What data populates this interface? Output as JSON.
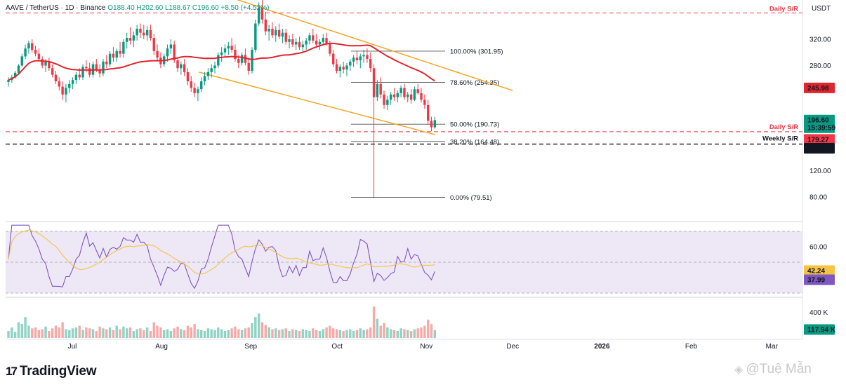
{
  "header": {
    "symbol": "AAVE / TetherUS · 1D · Binance",
    "ohlc": "O188.40 H202.60 L188.67 C196.60 +8.50 (+4.52%)"
  },
  "brand": {
    "logo_mark": "17",
    "logo_text": "TradingView"
  },
  "watermark": {
    "icon": "binance-diamond-icon",
    "text": "@Tuệ Mẫn"
  },
  "colors": {
    "up": "#089981",
    "down": "#f23645",
    "ma": "#e0252e",
    "channel": "#f5a524",
    "rsi": "#7e57c2",
    "rsi_ma": "#f6c343",
    "rsi_band": "#ede7f6"
  },
  "chart_data": [
    {
      "type": "candlestick",
      "panel": "price",
      "currency": "USDT",
      "y_ticks": [
        320,
        280,
        240,
        200,
        160,
        120,
        80
      ],
      "y_tick_labels": [
        "320.00",
        "280.00",
        "",
        "",
        "",
        "120.00",
        "80.00"
      ],
      "x_labels": [
        "Jul",
        "Aug",
        "Sep",
        "Oct",
        "Nov",
        "Dec",
        "2026",
        "Feb",
        "Mar"
      ],
      "last_price": {
        "label": "196.60",
        "countdown": "15:39:59"
      },
      "moving_average": {
        "label": "245.98"
      },
      "levels": [
        {
          "name": "Daily S/R",
          "value": 360,
          "style": "dashed",
          "color": "#f23645"
        },
        {
          "name": "Daily S/R",
          "value": 179.27,
          "label": "179.27",
          "style": "dashed",
          "color": "#f23645"
        },
        {
          "name": "Weekly S/R",
          "value": 160.51,
          "label": "160.51",
          "style": "dashed",
          "color": "#000000"
        }
      ],
      "fibonacci": [
        {
          "label": "100.00% (301.95)",
          "value": 301.95
        },
        {
          "label": "78.60% (254.35)",
          "value": 254.35
        },
        {
          "label": "50.00% (190.73)",
          "value": 190.73
        },
        {
          "label": "38.20% (164.48)",
          "value": 164.48
        },
        {
          "label": "0.00% (79.51)",
          "value": 79.51
        }
      ],
      "channel": {
        "upper": [
          {
            "date": "2025-08-24",
            "value": 385
          },
          {
            "date": "2025-12-01",
            "value": 242
          }
        ],
        "lower": [
          {
            "date": "2025-08-14",
            "value": 270
          },
          {
            "date": "2025-11-04",
            "value": 175
          }
        ]
      },
      "candles": [
        [
          255,
          262,
          248,
          258
        ],
        [
          258,
          266,
          254,
          262
        ],
        [
          262,
          272,
          260,
          269
        ],
        [
          269,
          282,
          266,
          280
        ],
        [
          280,
          298,
          278,
          294
        ],
        [
          294,
          312,
          290,
          306
        ],
        [
          306,
          318,
          298,
          314
        ],
        [
          314,
          320,
          300,
          304
        ],
        [
          304,
          310,
          294,
          298
        ],
        [
          298,
          306,
          286,
          290
        ],
        [
          290,
          294,
          276,
          280
        ],
        [
          280,
          290,
          270,
          286
        ],
        [
          286,
          292,
          272,
          276
        ],
        [
          276,
          282,
          262,
          266
        ],
        [
          266,
          272,
          252,
          256
        ],
        [
          256,
          262,
          242,
          248
        ],
        [
          248,
          256,
          228,
          236
        ],
        [
          236,
          252,
          224,
          246
        ],
        [
          246,
          258,
          238,
          252
        ],
        [
          252,
          262,
          244,
          258
        ],
        [
          258,
          270,
          252,
          266
        ],
        [
          266,
          276,
          258,
          262
        ],
        [
          262,
          282,
          258,
          278
        ],
        [
          278,
          288,
          270,
          276
        ],
        [
          276,
          284,
          262,
          266
        ],
        [
          266,
          286,
          262,
          282
        ],
        [
          282,
          290,
          270,
          274
        ],
        [
          274,
          282,
          262,
          268
        ],
        [
          268,
          290,
          264,
          286
        ],
        [
          286,
          296,
          276,
          282
        ],
        [
          282,
          302,
          278,
          298
        ],
        [
          298,
          308,
          286,
          292
        ],
        [
          292,
          306,
          286,
          302
        ],
        [
          302,
          316,
          292,
          298
        ],
        [
          298,
          320,
          292,
          316
        ],
        [
          316,
          330,
          306,
          322
        ],
        [
          322,
          338,
          312,
          318
        ],
        [
          318,
          332,
          308,
          326
        ],
        [
          326,
          342,
          318,
          336
        ],
        [
          336,
          344,
          322,
          330
        ],
        [
          330,
          342,
          320,
          326
        ],
        [
          326,
          340,
          318,
          334
        ],
        [
          334,
          342,
          318,
          322
        ],
        [
          322,
          328,
          296,
          302
        ],
        [
          302,
          312,
          286,
          292
        ],
        [
          292,
          300,
          276,
          282
        ],
        [
          282,
          298,
          278,
          294
        ],
        [
          294,
          312,
          286,
          306
        ],
        [
          306,
          320,
          298,
          312
        ],
        [
          312,
          318,
          284,
          288
        ],
        [
          288,
          292,
          270,
          276
        ],
        [
          276,
          286,
          266,
          282
        ],
        [
          282,
          290,
          264,
          270
        ],
        [
          270,
          276,
          250,
          256
        ],
        [
          256,
          264,
          240,
          246
        ],
        [
          246,
          254,
          232,
          238
        ],
        [
          238,
          248,
          226,
          244
        ],
        [
          244,
          262,
          240,
          256
        ],
        [
          256,
          270,
          250,
          264
        ],
        [
          264,
          276,
          258,
          270
        ],
        [
          270,
          282,
          262,
          276
        ],
        [
          276,
          286,
          268,
          280
        ],
        [
          280,
          300,
          276,
          296
        ],
        [
          296,
          308,
          286,
          300
        ],
        [
          300,
          312,
          292,
          306
        ],
        [
          306,
          316,
          296,
          310
        ],
        [
          310,
          322,
          300,
          304
        ],
        [
          304,
          312,
          286,
          290
        ],
        [
          290,
          296,
          276,
          284
        ],
        [
          284,
          300,
          280,
          296
        ],
        [
          296,
          306,
          280,
          284
        ],
        [
          284,
          292,
          266,
          272
        ],
        [
          272,
          308,
          268,
          304
        ],
        [
          304,
          350,
          300,
          344
        ],
        [
          344,
          376,
          340,
          368
        ],
        [
          368,
          380,
          344,
          350
        ],
        [
          350,
          362,
          326,
          332
        ],
        [
          332,
          342,
          318,
          336
        ],
        [
          336,
          346,
          322,
          326
        ],
        [
          326,
          340,
          316,
          334
        ],
        [
          334,
          344,
          320,
          324
        ],
        [
          324,
          336,
          314,
          330
        ],
        [
          330,
          336,
          312,
          316
        ],
        [
          316,
          326,
          306,
          320
        ],
        [
          320,
          328,
          308,
          312
        ],
        [
          312,
          322,
          304,
          316
        ],
        [
          316,
          324,
          304,
          308
        ],
        [
          308,
          318,
          300,
          312
        ],
        [
          312,
          322,
          304,
          318
        ],
        [
          318,
          330,
          312,
          326
        ],
        [
          326,
          336,
          314,
          318
        ],
        [
          318,
          328,
          308,
          312
        ],
        [
          312,
          320,
          304,
          316
        ],
        [
          316,
          328,
          310,
          322
        ],
        [
          322,
          330,
          310,
          314
        ],
        [
          314,
          318,
          294,
          298
        ],
        [
          298,
          304,
          278,
          282
        ],
        [
          282,
          290,
          268,
          272
        ],
        [
          272,
          282,
          262,
          278
        ],
        [
          278,
          286,
          268,
          274
        ],
        [
          274,
          284,
          264,
          280
        ],
        [
          280,
          290,
          272,
          286
        ],
        [
          286,
          296,
          278,
          292
        ],
        [
          292,
          302,
          282,
          288
        ],
        [
          288,
          298,
          276,
          294
        ],
        [
          294,
          304,
          284,
          296
        ],
        [
          296,
          306,
          284,
          290
        ],
        [
          290,
          300,
          270,
          276
        ],
        [
          276,
          282,
          78,
          232
        ],
        [
          232,
          258,
          226,
          252
        ],
        [
          252,
          262,
          230,
          236
        ],
        [
          236,
          242,
          214,
          220
        ],
        [
          220,
          234,
          212,
          228
        ],
        [
          228,
          240,
          220,
          236
        ],
        [
          236,
          246,
          226,
          232
        ],
        [
          232,
          242,
          224,
          238
        ],
        [
          238,
          250,
          232,
          246
        ],
        [
          246,
          252,
          228,
          232
        ],
        [
          232,
          240,
          224,
          236
        ],
        [
          236,
          244,
          222,
          228
        ],
        [
          228,
          248,
          226,
          244
        ],
        [
          244,
          252,
          236,
          238
        ],
        [
          238,
          246,
          224,
          228
        ],
        [
          228,
          236,
          214,
          220
        ],
        [
          220,
          228,
          190,
          196
        ],
        [
          196,
          202,
          180,
          186
        ],
        [
          186,
          202,
          184,
          197
        ]
      ],
      "volume": [
        40,
        60,
        35,
        90,
        80,
        120,
        70,
        55,
        60,
        45,
        50,
        65,
        40,
        55,
        70,
        60,
        90,
        50,
        45,
        55,
        60,
        70,
        45,
        60,
        55,
        50,
        40,
        65,
        55,
        50,
        60,
        45,
        70,
        50,
        65,
        55,
        60,
        40,
        50,
        55,
        45,
        60,
        40,
        90,
        70,
        60,
        45,
        50,
        40,
        55,
        65,
        50,
        45,
        70,
        60,
        80,
        50,
        45,
        40,
        55,
        50,
        45,
        60,
        50,
        40,
        45,
        55,
        65,
        50,
        45,
        55,
        60,
        85,
        120,
        140,
        90,
        75,
        60,
        50,
        55,
        45,
        50,
        55,
        40,
        50,
        45,
        40,
        50,
        45,
        40,
        55,
        45,
        40,
        50,
        60,
        70,
        55,
        50,
        45,
        40,
        45,
        50,
        40,
        45,
        55,
        45,
        50,
        60,
        180,
        110,
        70,
        85,
        60,
        50,
        45,
        40,
        55,
        50,
        45,
        40,
        50,
        55,
        60,
        70,
        105,
        80,
        45
      ],
      "volume_label": "117.94 K",
      "volume_ticks": [
        "400 K"
      ]
    },
    {
      "type": "line",
      "panel": "rsi",
      "y_tick_labels": [
        "60.00"
      ],
      "rsi_value_label": "37.99",
      "rsi_ma_label": "42.24"
    }
  ]
}
